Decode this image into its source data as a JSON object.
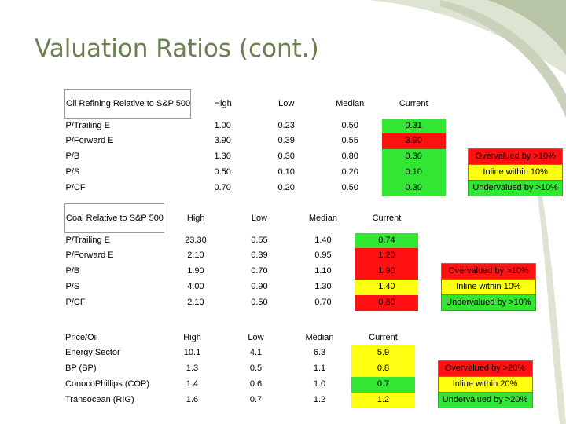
{
  "slide": {
    "title": "Valuation Ratios (cont.)",
    "accent_color": "#6b7f4f",
    "decor_color": "#c9d3bc"
  },
  "colors": {
    "green": "#33e633",
    "red": "#ff1111",
    "yellow": "#ffff11"
  },
  "columns": {
    "high": "High",
    "low": "Low",
    "median": "Median",
    "current": "Current"
  },
  "tables": [
    {
      "header": "Oil Refining Relative to S&P 500",
      "rows": [
        {
          "label": "P/Trailing E",
          "high": "1.00",
          "low": "0.23",
          "median": "0.50",
          "current": "0.31",
          "current_color": "green"
        },
        {
          "label": "P/Forward E",
          "high": "3.90",
          "low": "0.39",
          "median": "0.55",
          "current": "3.90",
          "current_color": "red"
        },
        {
          "label": "P/B",
          "high": "1.30",
          "low": "0.30",
          "median": "0.80",
          "current": "0.30",
          "current_color": "green"
        },
        {
          "label": "P/S",
          "high": "0.50",
          "low": "0.10",
          "median": "0.20",
          "current": "0.10",
          "current_color": "green"
        },
        {
          "label": "P/CF",
          "high": "0.70",
          "low": "0.20",
          "median": "0.50",
          "current": "0.30",
          "current_color": "green"
        }
      ],
      "legend": [
        "Overvalued by >10%",
        "Inline within 10%",
        "Undervalued by >10%"
      ]
    },
    {
      "header": "Coal Relative to S&P 500",
      "rows": [
        {
          "label": "P/Trailing E",
          "high": "23.30",
          "low": "0.55",
          "median": "1.40",
          "current": "0.74",
          "current_color": "green"
        },
        {
          "label": "P/Forward E",
          "high": "2.10",
          "low": "0.39",
          "median": "0.95",
          "current": "1.20",
          "current_color": "red"
        },
        {
          "label": "P/B",
          "high": "1.90",
          "low": "0.70",
          "median": "1.10",
          "current": "1.90",
          "current_color": "red"
        },
        {
          "label": "P/S",
          "high": "4.00",
          "low": "0.90",
          "median": "1.30",
          "current": "1.40",
          "current_color": "yellow"
        },
        {
          "label": "P/CF",
          "high": "2.10",
          "low": "0.50",
          "median": "0.70",
          "current": "0.80",
          "current_color": "red"
        }
      ],
      "legend": [
        "Overvalued by >10%",
        "Inline within 10%",
        "Undervalued by >10%"
      ]
    },
    {
      "header": "Price/Oil",
      "rows": [
        {
          "label": "Energy Sector",
          "high": "10.1",
          "low": "4.1",
          "median": "6.3",
          "current": "5.9",
          "current_color": "yellow"
        },
        {
          "label": "BP (BP)",
          "high": "1.3",
          "low": "0.5",
          "median": "1.1",
          "current": "0.8",
          "current_color": "yellow"
        },
        {
          "label": "ConocoPhillips (COP)",
          "high": "1.4",
          "low": "0.6",
          "median": "1.0",
          "current": "0.7",
          "current_color": "green"
        },
        {
          "label": "Transocean (RIG)",
          "high": "1.6",
          "low": "0.7",
          "median": "1.2",
          "current": "1.2",
          "current_color": "yellow"
        }
      ],
      "legend": [
        "Overvalued by >20%",
        "Inline within 20%",
        "Undervalued by >20%"
      ]
    }
  ]
}
